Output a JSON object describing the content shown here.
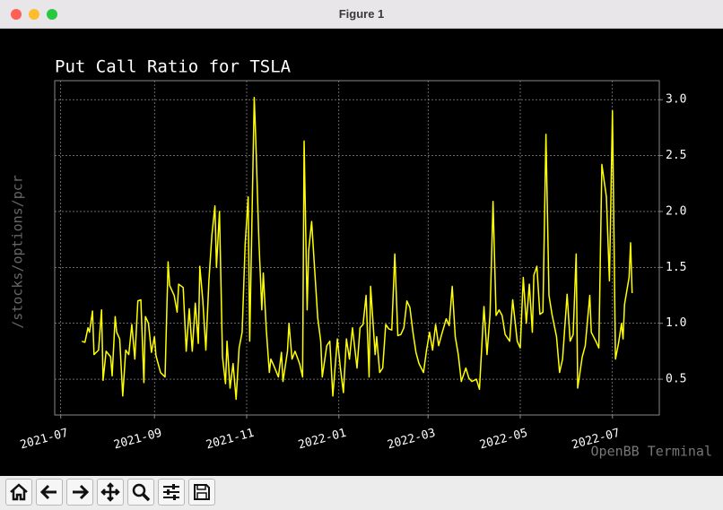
{
  "window": {
    "title": "Figure 1"
  },
  "watermark": "OpenBB Terminal",
  "chart_data": {
    "type": "line",
    "title": "Put Call Ratio for TSLA",
    "ylabel": "/stocks/options/pcr",
    "color": "#ffff00",
    "grid": true,
    "x": [
      "2021-07-15",
      "2021-07-17",
      "2021-07-19",
      "2021-07-20",
      "2021-07-22",
      "2021-07-23",
      "2021-07-26",
      "2021-07-28",
      "2021-07-29",
      "2021-07-31",
      "2021-08-03",
      "2021-08-04",
      "2021-08-06",
      "2021-08-07",
      "2021-08-09",
      "2021-08-11",
      "2021-08-13",
      "2021-08-15",
      "2021-08-17",
      "2021-08-19",
      "2021-08-21",
      "2021-08-23",
      "2021-08-25",
      "2021-08-26",
      "2021-08-28",
      "2021-08-30",
      "2021-09-01",
      "2021-09-02",
      "2021-09-05",
      "2021-09-08",
      "2021-09-10",
      "2021-09-11",
      "2021-09-14",
      "2021-09-16",
      "2021-09-17",
      "2021-09-20",
      "2021-09-22",
      "2021-09-24",
      "2021-09-26",
      "2021-09-28",
      "2021-09-30",
      "2021-10-01",
      "2021-10-03",
      "2021-10-05",
      "2021-10-07",
      "2021-10-09",
      "2021-10-11",
      "2021-10-12",
      "2021-10-14",
      "2021-10-16",
      "2021-10-18",
      "2021-10-19",
      "2021-10-21",
      "2021-10-23",
      "2021-10-25",
      "2021-10-27",
      "2021-10-29",
      "2021-10-31",
      "2021-11-02",
      "2021-11-03",
      "2021-11-06",
      "2021-11-07",
      "2021-11-09",
      "2021-11-11",
      "2021-11-12",
      "2021-11-14",
      "2021-11-16",
      "2021-11-17",
      "2021-11-19",
      "2021-11-22",
      "2021-11-24",
      "2021-11-25",
      "2021-11-28",
      "2021-11-29",
      "2021-12-01",
      "2021-12-03",
      "2021-12-06",
      "2021-12-08",
      "2021-12-09",
      "2021-12-11",
      "2021-12-12",
      "2021-12-14",
      "2021-12-15",
      "2021-12-18",
      "2021-12-20",
      "2021-12-21",
      "2021-12-24",
      "2021-12-26",
      "2021-12-28",
      "2021-12-31",
      "2022-01-02",
      "2022-01-04",
      "2022-01-06",
      "2022-01-08",
      "2022-01-10",
      "2022-01-13",
      "2022-01-15",
      "2022-01-17",
      "2022-01-19",
      "2022-01-21",
      "2022-01-22",
      "2022-01-25",
      "2022-01-26",
      "2022-01-28",
      "2022-01-30",
      "2022-02-01",
      "2022-02-03",
      "2022-02-05",
      "2022-02-07",
      "2022-02-09",
      "2022-02-11",
      "2022-02-13",
      "2022-02-15",
      "2022-02-17",
      "2022-02-19",
      "2022-02-21",
      "2022-02-23",
      "2022-02-26",
      "2022-02-28",
      "2022-03-02",
      "2022-03-04",
      "2022-03-06",
      "2022-03-08",
      "2022-03-10",
      "2022-03-13",
      "2022-03-15",
      "2022-03-17",
      "2022-03-19",
      "2022-03-21",
      "2022-03-23",
      "2022-03-26",
      "2022-03-28",
      "2022-03-30",
      "2022-04-02",
      "2022-04-04",
      "2022-04-07",
      "2022-04-09",
      "2022-04-11",
      "2022-04-13",
      "2022-04-15",
      "2022-04-17",
      "2022-04-19",
      "2022-04-21",
      "2022-04-24",
      "2022-04-26",
      "2022-04-29",
      "2022-05-01",
      "2022-05-03",
      "2022-05-05",
      "2022-05-07",
      "2022-05-09",
      "2022-05-10",
      "2022-05-12",
      "2022-05-14",
      "2022-05-16",
      "2022-05-18",
      "2022-05-20",
      "2022-05-22",
      "2022-05-25",
      "2022-05-27",
      "2022-05-29",
      "2022-06-01",
      "2022-06-03",
      "2022-06-05",
      "2022-06-07",
      "2022-06-08",
      "2022-06-11",
      "2022-06-13",
      "2022-06-16",
      "2022-06-17",
      "2022-06-20",
      "2022-06-22",
      "2022-06-24",
      "2022-06-27",
      "2022-06-29",
      "2022-07-01",
      "2022-07-03",
      "2022-07-05",
      "2022-07-07",
      "2022-07-08",
      "2022-07-09",
      "2022-07-12",
      "2022-07-13",
      "2022-07-14"
    ],
    "values": [
      0.84,
      0.83,
      0.96,
      0.92,
      1.11,
      0.72,
      0.76,
      1.12,
      0.49,
      0.75,
      0.7,
      0.53,
      1.06,
      0.92,
      0.86,
      0.35,
      0.76,
      0.72,
      0.99,
      0.68,
      1.2,
      1.21,
      0.47,
      1.06,
      1.0,
      0.74,
      0.88,
      0.71,
      0.56,
      0.52,
      1.55,
      1.34,
      1.25,
      1.1,
      1.35,
      1.32,
      0.75,
      1.13,
      0.75,
      1.18,
      0.82,
      1.51,
      1.2,
      0.76,
      1.38,
      1.79,
      2.05,
      1.5,
      2.0,
      0.7,
      0.46,
      0.84,
      0.42,
      0.64,
      0.32,
      0.78,
      0.92,
      1.71,
      2.13,
      0.84,
      3.02,
      2.65,
      1.77,
      1.12,
      1.45,
      0.94,
      0.56,
      0.68,
      0.62,
      0.52,
      0.74,
      0.48,
      0.75,
      1.0,
      0.68,
      0.75,
      0.64,
      0.52,
      2.63,
      1.12,
      1.65,
      1.91,
      1.69,
      1.05,
      0.84,
      0.52,
      0.8,
      0.84,
      0.35,
      0.86,
      0.6,
      0.38,
      0.86,
      0.68,
      0.96,
      0.6,
      0.96,
      0.99,
      1.25,
      0.52,
      1.33,
      0.72,
      0.88,
      0.56,
      0.6,
      0.99,
      0.95,
      0.94,
      1.62,
      0.89,
      0.9,
      0.96,
      1.2,
      1.14,
      0.92,
      0.74,
      0.64,
      0.56,
      0.76,
      0.92,
      0.76,
      0.99,
      0.8,
      0.9,
      1.04,
      0.98,
      1.33,
      0.88,
      0.72,
      0.48,
      0.6,
      0.51,
      0.48,
      0.5,
      0.41,
      1.15,
      0.72,
      1.08,
      2.09,
      1.07,
      1.12,
      1.07,
      0.9,
      0.84,
      1.21,
      0.84,
      0.78,
      1.41,
      1.0,
      1.35,
      0.92,
      1.43,
      1.51,
      1.08,
      1.1,
      2.69,
      1.25,
      1.08,
      0.88,
      0.56,
      0.68,
      1.26,
      0.84,
      0.9,
      1.62,
      0.42,
      0.7,
      0.8,
      1.25,
      0.92,
      0.84,
      0.78,
      2.42,
      2.13,
      1.38,
      2.9,
      0.68,
      0.82,
      1.0,
      0.86,
      1.17,
      1.41,
      1.72,
      1.27
    ],
    "xlim": [
      "2021-06-27",
      "2022-08-01"
    ],
    "xticks": [
      {
        "value": "2021-07-01",
        "label": "2021-07"
      },
      {
        "value": "2021-09-01",
        "label": "2021-09"
      },
      {
        "value": "2021-11-01",
        "label": "2021-11"
      },
      {
        "value": "2022-01-01",
        "label": "2022-01"
      },
      {
        "value": "2022-03-01",
        "label": "2022-03"
      },
      {
        "value": "2022-05-01",
        "label": "2022-05"
      },
      {
        "value": "2022-07-01",
        "label": "2022-07"
      }
    ],
    "ylim": [
      0.18,
      3.17
    ],
    "yticks": [
      0.5,
      {
        "value": 1,
        "label": "1.0"
      },
      1.5,
      {
        "value": 2,
        "label": "2.0"
      },
      2.5,
      {
        "value": 3,
        "label": "3.0"
      }
    ]
  }
}
